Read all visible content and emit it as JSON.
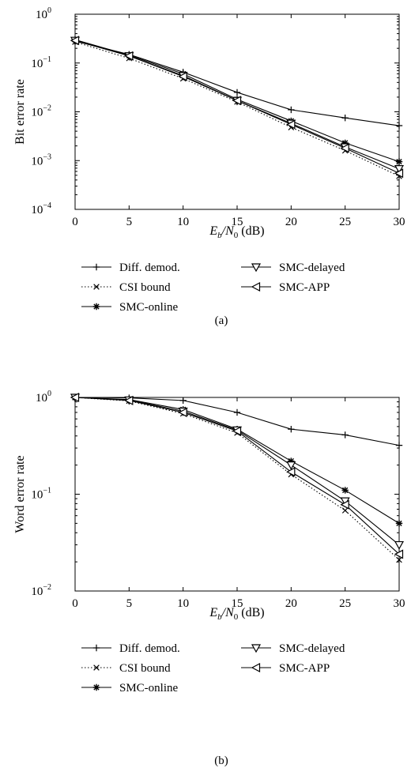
{
  "chart_data": [
    {
      "type": "line",
      "panel_label": "(a)",
      "ylabel": "Bit error rate",
      "xlabel": {
        "main": "E",
        "sub1": "b",
        "mid": "/N",
        "sub2": "0",
        "unit": " (dB)"
      },
      "yscale": "log",
      "xlim": [
        0,
        30
      ],
      "ylim": [
        0.0001,
        1
      ],
      "xticks": [
        "0",
        "5",
        "10",
        "15",
        "20",
        "25",
        "30"
      ],
      "yticks": [
        {
          "base": "10",
          "exp": "0"
        },
        {
          "base": "10",
          "exp": "−1"
        },
        {
          "base": "10",
          "exp": "−2"
        },
        {
          "base": "10",
          "exp": "−3"
        },
        {
          "base": "10",
          "exp": "−4"
        }
      ],
      "grid": false,
      "legend_position": "below",
      "x": [
        0,
        5,
        10,
        15,
        20,
        25,
        30
      ],
      "series": [
        {
          "name": "Diff. demod.",
          "marker": "plus",
          "dash": "solid",
          "values": [
            0.28,
            0.15,
            0.065,
            0.025,
            0.011,
            0.0075,
            0.0052
          ]
        },
        {
          "name": "CSI bound",
          "marker": "x",
          "dash": "dotted",
          "values": [
            0.27,
            0.125,
            0.048,
            0.016,
            0.0048,
            0.0016,
            0.00048
          ]
        },
        {
          "name": "SMC-online",
          "marker": "star",
          "dash": "solid",
          "values": [
            0.3,
            0.145,
            0.06,
            0.018,
            0.0065,
            0.0023,
            0.00095
          ]
        },
        {
          "name": "SMC-delayed",
          "marker": "tri-down",
          "dash": "solid",
          "values": [
            0.29,
            0.14,
            0.055,
            0.017,
            0.0058,
            0.0019,
            0.00068
          ]
        },
        {
          "name": "SMC-APP",
          "marker": "tri-left",
          "dash": "solid",
          "values": [
            0.29,
            0.14,
            0.053,
            0.017,
            0.0055,
            0.0018,
            0.00055
          ]
        }
      ]
    },
    {
      "type": "line",
      "panel_label": "(b)",
      "ylabel": "Word error rate",
      "xlabel": {
        "main": "E",
        "sub1": "b",
        "mid": "/N",
        "sub2": "0",
        "unit": " (dB)"
      },
      "yscale": "log",
      "xlim": [
        0,
        30
      ],
      "ylim": [
        0.01,
        1
      ],
      "xticks": [
        "0",
        "5",
        "10",
        "15",
        "20",
        "25",
        "30"
      ],
      "yticks": [
        {
          "base": "10",
          "exp": "0"
        },
        {
          "base": "10",
          "exp": "−1"
        },
        {
          "base": "10",
          "exp": "−2"
        }
      ],
      "grid": false,
      "legend_position": "below",
      "x": [
        0,
        5,
        10,
        15,
        20,
        25,
        30
      ],
      "series": [
        {
          "name": "Diff. demod.",
          "marker": "plus",
          "dash": "solid",
          "values": [
            1.0,
            0.99,
            0.93,
            0.7,
            0.47,
            0.41,
            0.32
          ]
        },
        {
          "name": "CSI bound",
          "marker": "x",
          "dash": "dotted",
          "values": [
            1.0,
            0.92,
            0.68,
            0.43,
            0.16,
            0.068,
            0.021
          ]
        },
        {
          "name": "SMC-online",
          "marker": "star",
          "dash": "solid",
          "values": [
            1.0,
            0.95,
            0.75,
            0.47,
            0.22,
            0.11,
            0.05
          ]
        },
        {
          "name": "SMC-delayed",
          "marker": "tri-down",
          "dash": "solid",
          "values": [
            1.0,
            0.94,
            0.72,
            0.46,
            0.2,
            0.085,
            0.03
          ]
        },
        {
          "name": "SMC-APP",
          "marker": "tri-left",
          "dash": "solid",
          "values": [
            1.0,
            0.93,
            0.7,
            0.45,
            0.17,
            0.078,
            0.024
          ]
        }
      ]
    }
  ]
}
